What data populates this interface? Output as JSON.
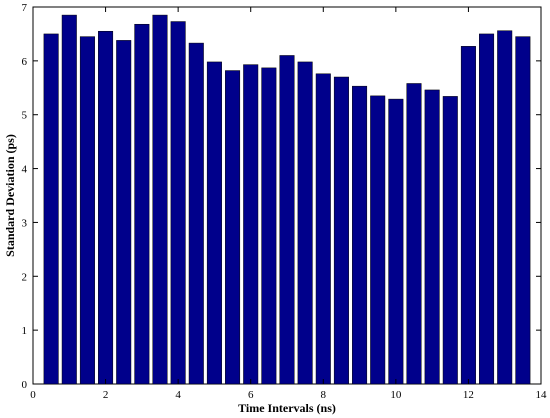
{
  "chart_data": {
    "type": "bar",
    "title": "",
    "xlabel": "Time Intervals (ns)",
    "ylabel": "Standard Deviation (ps)",
    "xlim": [
      0,
      14
    ],
    "ylim": [
      0,
      7
    ],
    "xticks": [
      "0",
      "2",
      "4",
      "6",
      "8",
      "10",
      "12",
      "14"
    ],
    "yticks": [
      "0",
      "1",
      "2",
      "3",
      "4",
      "5",
      "6",
      "7"
    ],
    "bar_color": "#00008b",
    "bar_width": 0.4,
    "grid": false,
    "x": [
      0.5,
      1.0,
      1.5,
      2.0,
      2.5,
      3.0,
      3.5,
      4.0,
      4.5,
      5.0,
      5.5,
      6.0,
      6.5,
      7.0,
      7.5,
      8.0,
      8.5,
      9.0,
      9.5,
      10.0,
      10.5,
      11.0,
      11.5,
      12.0,
      12.5,
      13.0,
      13.5
    ],
    "values": [
      6.5,
      6.85,
      6.45,
      6.55,
      6.38,
      6.68,
      6.85,
      6.73,
      6.33,
      5.98,
      5.82,
      5.93,
      5.87,
      6.1,
      5.98,
      5.76,
      5.7,
      5.53,
      5.35,
      5.29,
      5.58,
      5.46,
      5.34,
      6.27,
      6.5,
      6.56,
      6.45
    ]
  }
}
